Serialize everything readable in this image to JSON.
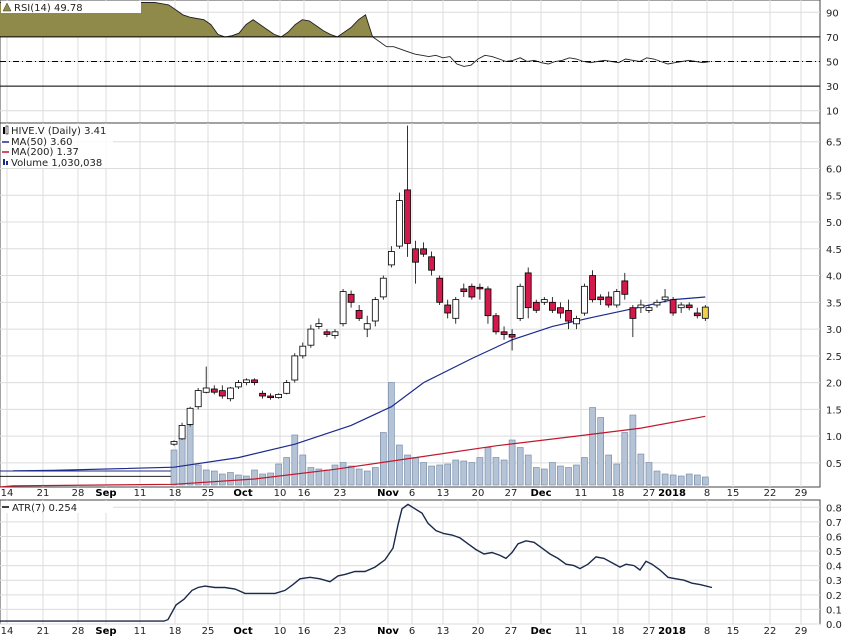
{
  "chart_data": [
    {
      "type": "area",
      "panel": "rsi",
      "legend": {
        "label": "RSI(14) 49.78"
      },
      "y_ticks": [
        10,
        30,
        50,
        70,
        90
      ],
      "ylim": [
        0,
        100
      ],
      "reference_lines": {
        "upper": 70,
        "mid": 50,
        "lower": 30
      },
      "colors": {
        "fill": "#8f8a4a",
        "line": "#222222"
      },
      "values": [
        98,
        98,
        98,
        98,
        98,
        98,
        98,
        98,
        98,
        98,
        98,
        98,
        98,
        98,
        98,
        98,
        98,
        98,
        98,
        98,
        98,
        98,
        98,
        97,
        96,
        92,
        88,
        86,
        85,
        84,
        80,
        72,
        70,
        71,
        73,
        80,
        84,
        80,
        76,
        72,
        70,
        74,
        80,
        84,
        83,
        79,
        75,
        72,
        70,
        74,
        78,
        84,
        88,
        70,
        66,
        62,
        62,
        60,
        58,
        56,
        55,
        54,
        55,
        53,
        54,
        48,
        46,
        47,
        52,
        55,
        54,
        52,
        50,
        51,
        53,
        50,
        51,
        49,
        48,
        50,
        51,
        53,
        52,
        50,
        49,
        50,
        51,
        50,
        49,
        52,
        51,
        50,
        53,
        52,
        50,
        48,
        49,
        50,
        51,
        50,
        49,
        50
      ]
    },
    {
      "type": "candlestick",
      "panel": "price",
      "legend": [
        {
          "label": "HIVE.V (Daily) 3.41"
        },
        {
          "label": "MA(50) 3.60",
          "color": "#1c2a8c"
        },
        {
          "label": "MA(200) 1.37",
          "color": "#c0182d"
        },
        {
          "label": "Volume 1,030,038",
          "color": "#1c2a8c"
        }
      ],
      "y_ticks": [
        0.5,
        1.0,
        1.5,
        2.0,
        2.5,
        3.0,
        3.5,
        4.0,
        4.5,
        5.0,
        5.5,
        6.0,
        6.5
      ],
      "ylim": [
        0.05,
        6.85
      ],
      "colors": {
        "up": "#ffffff",
        "down": "#d21a4b",
        "outline": "#000000",
        "last": "#f2d04a",
        "ma50": "#1c2a8c",
        "ma200": "#c0182d",
        "volume": "#b4c3d6",
        "volume_edge": "#6e84a3"
      },
      "candles": [
        [
          0,
          0.85,
          0.92,
          0.82,
          0.9
        ],
        [
          1,
          0.95,
          1.25,
          0.93,
          1.2
        ],
        [
          2,
          1.22,
          1.55,
          1.18,
          1.52
        ],
        [
          3,
          1.55,
          1.9,
          1.5,
          1.85
        ],
        [
          4,
          1.82,
          2.3,
          1.8,
          1.9
        ],
        [
          5,
          1.88,
          1.95,
          1.78,
          1.82
        ],
        [
          6,
          1.85,
          1.95,
          1.7,
          1.75
        ],
        [
          7,
          1.7,
          1.92,
          1.65,
          1.9
        ],
        [
          8,
          1.92,
          2.05,
          1.88,
          2.0
        ],
        [
          9,
          2.0,
          2.08,
          1.95,
          2.05
        ],
        [
          10,
          2.05,
          2.08,
          1.95,
          2.0
        ],
        [
          11,
          1.8,
          1.85,
          1.7,
          1.75
        ],
        [
          12,
          1.75,
          1.8,
          1.68,
          1.72
        ],
        [
          13,
          1.72,
          1.8,
          1.7,
          1.78
        ],
        [
          14,
          1.8,
          2.05,
          1.78,
          2.0
        ],
        [
          15,
          2.05,
          2.55,
          2.0,
          2.5
        ],
        [
          16,
          2.5,
          2.75,
          2.45,
          2.68
        ],
        [
          17,
          2.7,
          3.08,
          2.65,
          3.0
        ],
        [
          18,
          3.05,
          3.2,
          3.0,
          3.1
        ],
        [
          19,
          2.95,
          3.0,
          2.85,
          2.9
        ],
        [
          20,
          2.88,
          3.0,
          2.82,
          2.95
        ],
        [
          21,
          3.1,
          3.75,
          3.05,
          3.7
        ],
        [
          22,
          3.65,
          3.72,
          3.4,
          3.5
        ],
        [
          23,
          3.35,
          3.45,
          3.15,
          3.2
        ],
        [
          24,
          3.0,
          3.25,
          2.85,
          3.1
        ],
        [
          25,
          3.15,
          3.6,
          3.05,
          3.55
        ],
        [
          26,
          3.6,
          4.0,
          3.55,
          3.95
        ],
        [
          27,
          4.2,
          4.55,
          4.15,
          4.45
        ],
        [
          28,
          4.55,
          5.55,
          4.5,
          5.4
        ],
        [
          29,
          5.6,
          6.8,
          4.35,
          4.6
        ],
        [
          30,
          4.5,
          4.65,
          3.85,
          4.25
        ],
        [
          31,
          4.5,
          4.62,
          4.35,
          4.4
        ],
        [
          32,
          4.35,
          4.45,
          4.0,
          4.1
        ],
        [
          33,
          3.95,
          4.0,
          3.45,
          3.5
        ],
        [
          34,
          3.45,
          3.55,
          3.2,
          3.3
        ],
        [
          35,
          3.2,
          3.6,
          3.1,
          3.55
        ],
        [
          36,
          3.75,
          3.85,
          3.6,
          3.7
        ],
        [
          37,
          3.8,
          3.85,
          3.55,
          3.6
        ],
        [
          38,
          3.78,
          3.85,
          3.55,
          3.75
        ],
        [
          39,
          3.75,
          3.8,
          3.1,
          3.25
        ],
        [
          40,
          3.25,
          3.3,
          2.9,
          2.95
        ],
        [
          41,
          2.95,
          3.05,
          2.8,
          2.9
        ],
        [
          42,
          2.9,
          3.0,
          2.6,
          2.85
        ],
        [
          43,
          3.2,
          3.85,
          3.15,
          3.8
        ],
        [
          44,
          4.05,
          4.15,
          3.2,
          3.4
        ],
        [
          45,
          3.5,
          3.55,
          3.3,
          3.35
        ],
        [
          46,
          3.5,
          3.6,
          3.45,
          3.55
        ],
        [
          47,
          3.5,
          3.6,
          3.3,
          3.35
        ],
        [
          48,
          3.4,
          3.5,
          3.2,
          3.3
        ],
        [
          49,
          3.35,
          3.55,
          3.0,
          3.15
        ],
        [
          50,
          3.1,
          3.25,
          3.0,
          3.2
        ],
        [
          51,
          3.3,
          3.85,
          3.25,
          3.8
        ],
        [
          52,
          4.0,
          4.1,
          3.5,
          3.55
        ],
        [
          53,
          3.6,
          3.65,
          3.45,
          3.55
        ],
        [
          54,
          3.6,
          3.7,
          3.4,
          3.45
        ],
        [
          55,
          3.45,
          3.75,
          3.4,
          3.7
        ],
        [
          56,
          3.9,
          4.05,
          3.55,
          3.65
        ],
        [
          57,
          3.4,
          3.45,
          2.85,
          3.2
        ],
        [
          58,
          3.4,
          3.55,
          3.3,
          3.45
        ],
        [
          59,
          3.35,
          3.45,
          3.3,
          3.4
        ],
        [
          60,
          3.45,
          3.55,
          3.4,
          3.5
        ],
        [
          61,
          3.55,
          3.75,
          3.5,
          3.6
        ],
        [
          62,
          3.55,
          3.6,
          3.25,
          3.3
        ],
        [
          63,
          3.4,
          3.5,
          3.3,
          3.45
        ],
        [
          64,
          3.45,
          3.5,
          3.35,
          3.4
        ],
        [
          65,
          3.3,
          3.4,
          3.2,
          3.25
        ],
        [
          66,
          3.2,
          3.45,
          3.15,
          3.41
        ]
      ],
      "ma50": [
        [
          -20,
          0.35
        ],
        [
          -15,
          0.36
        ],
        [
          0,
          0.42
        ],
        [
          8,
          0.6
        ],
        [
          15,
          0.85
        ],
        [
          22,
          1.2
        ],
        [
          27,
          1.55
        ],
        [
          31,
          2.0
        ],
        [
          37,
          2.45
        ],
        [
          42,
          2.8
        ],
        [
          47,
          3.05
        ],
        [
          52,
          3.22
        ],
        [
          57,
          3.38
        ],
        [
          62,
          3.55
        ],
        [
          66,
          3.6
        ]
      ],
      "ma200": [
        [
          -35,
          0.05
        ],
        [
          -20,
          0.07
        ],
        [
          0,
          0.1
        ],
        [
          10,
          0.2
        ],
        [
          20,
          0.38
        ],
        [
          30,
          0.6
        ],
        [
          40,
          0.82
        ],
        [
          50,
          1.0
        ],
        [
          58,
          1.15
        ],
        [
          66,
          1.37
        ]
      ],
      "volume": [
        0.7,
        1.05,
        1.25,
        0.4,
        0.3,
        0.28,
        0.22,
        0.25,
        0.2,
        0.18,
        0.3,
        0.22,
        0.24,
        0.42,
        0.55,
        1.0,
        0.6,
        0.35,
        0.32,
        0.3,
        0.4,
        0.45,
        0.38,
        0.32,
        0.28,
        0.35,
        1.05,
        2.05,
        0.8,
        0.6,
        0.55,
        0.45,
        0.38,
        0.4,
        0.42,
        0.5,
        0.48,
        0.45,
        0.55,
        0.75,
        0.55,
        0.5,
        0.9,
        0.75,
        0.6,
        0.35,
        0.32,
        0.45,
        0.38,
        0.35,
        0.4,
        0.55,
        1.55,
        1.35,
        0.6,
        0.42,
        1.05,
        1.4,
        0.62,
        0.45,
        0.28,
        0.22,
        0.2,
        0.18,
        0.22,
        0.2,
        0.16
      ],
      "x_ticks": [
        "14",
        "21",
        "28",
        "Sep",
        "11",
        "18",
        "25",
        "Oct",
        "10",
        "16",
        "23",
        "Nov",
        "6",
        "13",
        "20",
        "27",
        "Dec",
        "11",
        "18",
        "27",
        "2018",
        "8",
        "15",
        "22",
        "29"
      ]
    },
    {
      "type": "line",
      "panel": "atr",
      "legend": {
        "label": "ATR(7) 0.254",
        "color": "#000000"
      },
      "y_ticks": [
        0.0,
        0.1,
        0.2,
        0.3,
        0.4,
        0.5,
        0.6,
        0.7,
        0.8
      ],
      "ylim": [
        0.0,
        0.85
      ],
      "colors": {
        "line": "#1a2a4a"
      },
      "points": [
        [
          0,
          0.02
        ],
        [
          164,
          0.02
        ],
        [
          168,
          0.03
        ],
        [
          176,
          0.13
        ],
        [
          184,
          0.17
        ],
        [
          192,
          0.23
        ],
        [
          198,
          0.25
        ],
        [
          205,
          0.26
        ],
        [
          215,
          0.25
        ],
        [
          225,
          0.25
        ],
        [
          235,
          0.24
        ],
        [
          245,
          0.21
        ],
        [
          255,
          0.21
        ],
        [
          265,
          0.21
        ],
        [
          275,
          0.21
        ],
        [
          285,
          0.23
        ],
        [
          293,
          0.27
        ],
        [
          300,
          0.31
        ],
        [
          310,
          0.32
        ],
        [
          320,
          0.31
        ],
        [
          330,
          0.29
        ],
        [
          338,
          0.33
        ],
        [
          345,
          0.34
        ],
        [
          355,
          0.36
        ],
        [
          365,
          0.36
        ],
        [
          375,
          0.39
        ],
        [
          385,
          0.44
        ],
        [
          393,
          0.52
        ],
        [
          398,
          0.68
        ],
        [
          402,
          0.79
        ],
        [
          408,
          0.82
        ],
        [
          415,
          0.79
        ],
        [
          422,
          0.76
        ],
        [
          428,
          0.69
        ],
        [
          436,
          0.64
        ],
        [
          444,
          0.62
        ],
        [
          452,
          0.61
        ],
        [
          460,
          0.59
        ],
        [
          468,
          0.55
        ],
        [
          476,
          0.51
        ],
        [
          484,
          0.48
        ],
        [
          492,
          0.49
        ],
        [
          500,
          0.47
        ],
        [
          506,
          0.45
        ],
        [
          512,
          0.49
        ],
        [
          518,
          0.55
        ],
        [
          526,
          0.57
        ],
        [
          534,
          0.56
        ],
        [
          542,
          0.52
        ],
        [
          550,
          0.48
        ],
        [
          558,
          0.45
        ],
        [
          566,
          0.41
        ],
        [
          574,
          0.4
        ],
        [
          580,
          0.38
        ],
        [
          588,
          0.41
        ],
        [
          596,
          0.46
        ],
        [
          604,
          0.45
        ],
        [
          612,
          0.42
        ],
        [
          620,
          0.39
        ],
        [
          626,
          0.41
        ],
        [
          634,
          0.4
        ],
        [
          640,
          0.37
        ],
        [
          646,
          0.43
        ],
        [
          652,
          0.41
        ],
        [
          660,
          0.37
        ],
        [
          668,
          0.32
        ],
        [
          676,
          0.31
        ],
        [
          684,
          0.3
        ],
        [
          692,
          0.28
        ],
        [
          700,
          0.27
        ],
        [
          712,
          0.25
        ]
      ]
    }
  ]
}
